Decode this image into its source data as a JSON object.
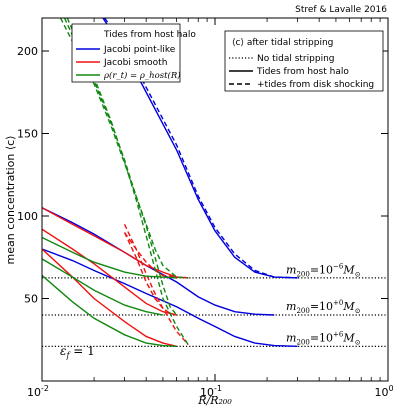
{
  "chart_data": {
    "type": "line",
    "credit": "Stref & Lavalle 2016",
    "xlabel": "R/R₂₀₀",
    "ylabel": "mean concentration ⟨c⟩",
    "x_scale": "log",
    "xlim": [
      0.01,
      1
    ],
    "ylim": [
      0,
      220
    ],
    "x_ticks": [
      0.01,
      0.1,
      1
    ],
    "x_tick_labels": [
      "10",
      "10",
      "10"
    ],
    "x_tick_exponents": [
      "-2",
      "-1",
      "0"
    ],
    "y_ticks": [
      50,
      100,
      150,
      200
    ],
    "y_tick_labels": [
      "50",
      "100",
      "150",
      "200"
    ],
    "grid": false,
    "legend_models": {
      "title": "Tides from host halo",
      "placement": "top-left",
      "entries": [
        {
          "label": "Jacobi point-like",
          "color": "#0000dd"
        },
        {
          "label": "Jacobi smooth",
          "color": "#ee1111"
        },
        {
          "label": "ρ(r_t) = ρ_host(R)",
          "color": "#118811"
        }
      ]
    },
    "legend_styles": {
      "title": "⟨c⟩ after tidal stripping",
      "placement": "top-right",
      "entries": [
        {
          "label": "No tidal stripping",
          "dash": "dotted"
        },
        {
          "label": "Tides from host halo",
          "dash": "solid"
        },
        {
          "label": "+tides from disk shocking",
          "dash": "dashed"
        }
      ]
    },
    "mass_labels": [
      {
        "prefix": "m",
        "sub": "200",
        "mid": "=10",
        "exp": "−6",
        "unit": "M",
        "unit_sub": "⊙",
        "y": 62
      },
      {
        "prefix": "m",
        "sub": "200",
        "mid": "=10",
        "exp": "+0",
        "unit": "M",
        "unit_sub": "⊙",
        "y": 40
      },
      {
        "prefix": "m",
        "sub": "200",
        "mid": "=10",
        "exp": "+6",
        "unit": "M",
        "unit_sub": "⊙",
        "y": 21
      }
    ],
    "annotation": {
      "text": "ε_f = 1",
      "sym": "ε",
      "sub": "f",
      "rest": " = 1"
    },
    "baselines": [
      62.5,
      40,
      21
    ],
    "series": [
      {
        "model": "point",
        "mass": "1e-6",
        "color": "#0000dd",
        "dash": "solid",
        "x": [
          0.0225,
          0.03,
          0.04,
          0.06,
          0.08,
          0.1,
          0.13,
          0.17,
          0.22,
          0.3
        ],
        "y": [
          220,
          200,
          175,
          140,
          110,
          91,
          75,
          66,
          63,
          62.5
        ]
      },
      {
        "model": "point",
        "mass": "1e-6",
        "color": "#0000dd",
        "dash": "dashed",
        "x": [
          0.023,
          0.03,
          0.04,
          0.06,
          0.08,
          0.1,
          0.13,
          0.17,
          0.22,
          0.3
        ],
        "y": [
          220,
          203,
          178,
          143,
          112,
          93,
          77,
          67,
          63,
          62.5
        ]
      },
      {
        "model": "point",
        "mass": "1e0",
        "color": "#0000dd",
        "dash": "solid",
        "x": [
          0.01,
          0.015,
          0.02,
          0.03,
          0.04,
          0.06,
          0.08,
          0.1,
          0.13,
          0.17,
          0.22
        ],
        "y": [
          105,
          96,
          89,
          78,
          70,
          60,
          51,
          46,
          42,
          40.5,
          40
        ]
      },
      {
        "model": "point",
        "mass": "1e6",
        "color": "#0000dd",
        "dash": "solid",
        "x": [
          0.01,
          0.015,
          0.02,
          0.03,
          0.04,
          0.06,
          0.08,
          0.1,
          0.13,
          0.17,
          0.22,
          0.3
        ],
        "y": [
          80,
          73,
          67,
          59,
          53,
          45,
          38,
          33,
          27,
          23,
          21.5,
          21
        ]
      },
      {
        "model": "smooth",
        "mass": "1e-6",
        "color": "#ee1111",
        "dash": "solid",
        "x": [
          0.01,
          0.015,
          0.02,
          0.03,
          0.04,
          0.05,
          0.06,
          0.07
        ],
        "y": [
          105,
          95,
          88,
          78,
          70,
          66,
          63,
          62.5
        ]
      },
      {
        "model": "smooth",
        "mass": "1e0",
        "color": "#ee1111",
        "dash": "solid",
        "x": [
          0.01,
          0.015,
          0.02,
          0.03,
          0.04,
          0.05,
          0.06
        ],
        "y": [
          92,
          80,
          71,
          57,
          47,
          42,
          40
        ]
      },
      {
        "model": "smooth",
        "mass": "1e6",
        "color": "#ee1111",
        "dash": "solid",
        "x": [
          0.01,
          0.015,
          0.02,
          0.03,
          0.04,
          0.05,
          0.06
        ],
        "y": [
          80,
          63,
          50,
          36,
          27,
          23,
          21
        ]
      },
      {
        "model": "smooth",
        "mass": "1e-6",
        "color": "#ee1111",
        "dash": "dashed",
        "x": [
          0.03,
          0.035,
          0.04,
          0.045,
          0.05,
          0.06,
          0.07
        ],
        "y": [
          90,
          80,
          72,
          67,
          64,
          63,
          62.5
        ]
      },
      {
        "model": "smooth",
        "mass": "1e0",
        "color": "#ee1111",
        "dash": "dashed",
        "x": [
          0.03,
          0.035,
          0.04,
          0.045,
          0.05,
          0.055,
          0.06
        ],
        "y": [
          90,
          75,
          60,
          50,
          44,
          41,
          40
        ]
      },
      {
        "model": "smooth",
        "mass": "1e6",
        "color": "#ee1111",
        "dash": "dashed",
        "x": [
          0.03,
          0.035,
          0.04,
          0.045,
          0.05,
          0.06,
          0.07
        ],
        "y": [
          95,
          80,
          65,
          53,
          44,
          30,
          22
        ]
      },
      {
        "model": "density",
        "mass": "1e-6",
        "color": "#118811",
        "dash": "solid",
        "x": [
          0.01,
          0.015,
          0.02,
          0.03,
          0.04,
          0.05,
          0.06
        ],
        "y": [
          87,
          78,
          72,
          66,
          63.5,
          63,
          62.5
        ]
      },
      {
        "model": "density",
        "mass": "1e0",
        "color": "#118811",
        "dash": "solid",
        "x": [
          0.01,
          0.015,
          0.02,
          0.03,
          0.04,
          0.05
        ],
        "y": [
          74,
          63,
          55,
          46,
          42,
          40
        ]
      },
      {
        "model": "density",
        "mass": "1e6",
        "color": "#118811",
        "dash": "solid",
        "x": [
          0.01,
          0.015,
          0.02,
          0.03,
          0.04,
          0.05,
          0.06
        ],
        "y": [
          64,
          48,
          38,
          28,
          23,
          21.5,
          21
        ]
      },
      {
        "model": "density",
        "mass": "1e-6",
        "color": "#118811",
        "dash": "dashed",
        "x": [
          0.0128,
          0.016,
          0.02,
          0.025,
          0.03,
          0.035,
          0.04,
          0.045,
          0.05,
          0.06,
          0.07
        ],
        "y": [
          220,
          200,
          180,
          155,
          132,
          112,
          95,
          80,
          70,
          63,
          62.5
        ]
      },
      {
        "model": "density",
        "mass": "1e0",
        "color": "#118811",
        "dash": "dashed",
        "x": [
          0.0135,
          0.016,
          0.02,
          0.025,
          0.03,
          0.035,
          0.04,
          0.045,
          0.05,
          0.055,
          0.06
        ],
        "y": [
          220,
          203,
          182,
          157,
          134,
          112,
          94,
          75,
          58,
          45,
          40
        ]
      },
      {
        "model": "density",
        "mass": "1e6",
        "color": "#118811",
        "dash": "dashed",
        "x": [
          0.014,
          0.016,
          0.02,
          0.025,
          0.03,
          0.035,
          0.04,
          0.045,
          0.05,
          0.06,
          0.07
        ],
        "y": [
          220,
          206,
          184,
          158,
          133,
          110,
          88,
          68,
          50,
          33,
          22
        ]
      }
    ]
  }
}
